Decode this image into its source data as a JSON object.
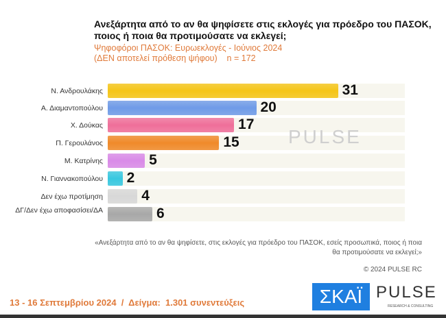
{
  "chart_data": {
    "type": "bar",
    "orientation": "horizontal",
    "title": "Ανεξάρτητα από το αν θα ψηφίσετε στις εκλογές για πρόεδρο του ΠΑΣΟΚ, ποιος ή ποια θα προτιμούσατε να εκλεγεί;",
    "subtitle": [
      "Ψηφοφόροι ΠΑΣΟΚ: Ευρωεκλογές - Ιούνιος 2024",
      "(ΔΕΝ αποτελεί πρόθεση ψήφου)    n = 172"
    ],
    "categories": [
      "Ν. Ανδρουλάκης",
      "Α. Διαμαντοπούλου",
      "Χ. Δούκας",
      "Π. Γερουλάνος",
      "Μ. Κατρίνης",
      "Ν. Γιαννακοπούλου",
      "Δεν έχω προτίμηση",
      "ΔΓ/Δεν έχω αποφασίσει/ΔΑ"
    ],
    "values": [
      31,
      20,
      17,
      15,
      5,
      2,
      4,
      6
    ],
    "colors": [
      "#f5c518",
      "#6f9be8",
      "#ef6f9a",
      "#f08a2a",
      "#d98ae8",
      "#38c8e0",
      "#d8d8d8",
      "#a8a8a8"
    ],
    "xlim": [
      0,
      40
    ],
    "grid": false,
    "legend": "none"
  },
  "watermark": "PULSE",
  "quote": "«Ανεξάρτητα από το αν θα ψηφίσετε, στις εκλογές για πρόεδρο του ΠΑΣΟΚ, εσείς προσωπικά, ποιος ή ποια θα προτιμούσατε να εκλεγεί;»",
  "copyright": "© 2024 PULSE RC",
  "footer": "13 - 16 Σεπτεμβρίου 2024  /  Δείγμα:  1.301 συνεντεύξεις",
  "logos": {
    "skai": "ΣΚΑΪ",
    "pulse": "PULSE",
    "pulse_sub": "RESEARCH & CONSULTING"
  }
}
